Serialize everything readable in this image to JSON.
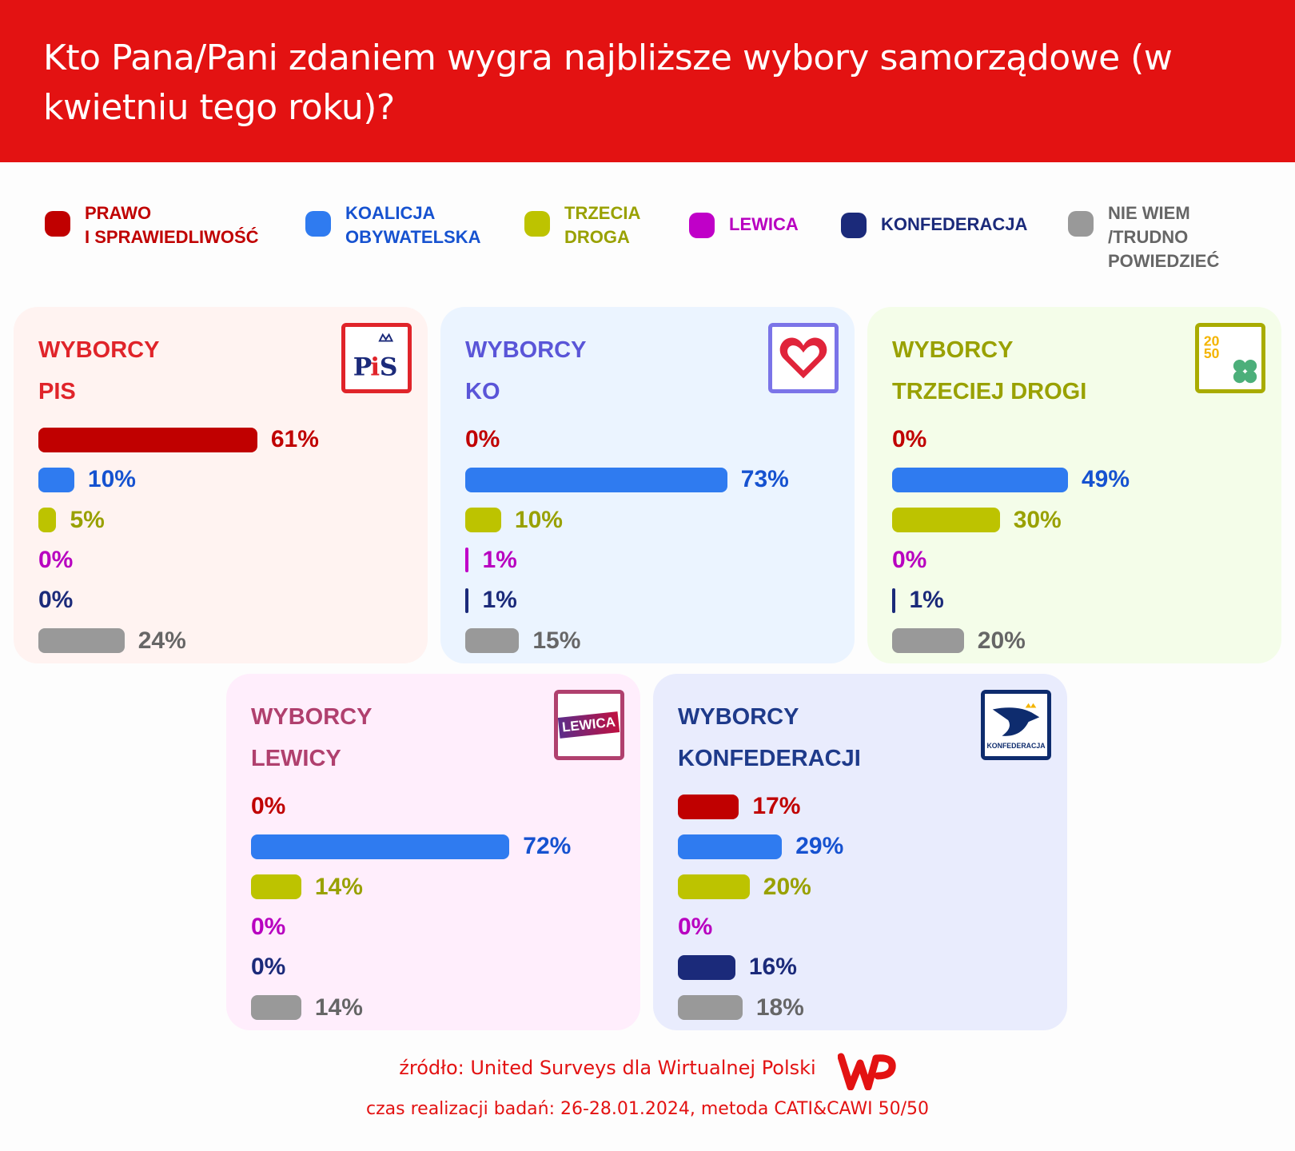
{
  "header": {
    "title": "Kto Pana/Pani zdaniem wygra najbliższe wybory samorządowe (w kwietniu tego roku)?"
  },
  "legend": [
    {
      "label": "PRAWO\nI SPRAWIEDLIWOŚĆ",
      "color": "#c00000",
      "text": "#c00000"
    },
    {
      "label": "KOALICJA\nOBYWATELSKA",
      "color": "#2f7bf0",
      "text": "#1652d0"
    },
    {
      "label": "TRZECIA\nDROGA",
      "color": "#bdc300",
      "text": "#99a100"
    },
    {
      "label": "LEWICA",
      "color": "#c000c8",
      "text": "#b800c0"
    },
    {
      "label": "KONFEDERACJA",
      "color": "#1b2a7a",
      "text": "#1b2a7a"
    },
    {
      "label": "NIE WIEM\n/TRUDNO\nPOWIEDZIEĆ",
      "color": "#999999",
      "text": "#666666"
    }
  ],
  "chart_data": [
    {
      "type": "bar",
      "title": "WYBORCY\nPIS",
      "logo": "pis-logo",
      "categories": [
        "PRAWO I SPRAWIEDLIWOŚĆ",
        "KOALICJA OBYWATELSKA",
        "TRZECIA DROGA",
        "LEWICA",
        "KONFEDERACJA",
        "NIE WIEM /TRUDNO POWIEDZIEĆ"
      ],
      "values": [
        61,
        10,
        5,
        0,
        0,
        24
      ],
      "labels": [
        "61%",
        "10%",
        "5%",
        "0%",
        "0%",
        "24%"
      ]
    },
    {
      "type": "bar",
      "title": "WYBORCY\nKO",
      "logo": "ko-heart-logo",
      "categories": [
        "PRAWO I SPRAWIEDLIWOŚĆ",
        "KOALICJA OBYWATELSKA",
        "TRZECIA DROGA",
        "LEWICA",
        "KONFEDERACJA",
        "NIE WIEM /TRUDNO POWIEDZIEĆ"
      ],
      "values": [
        0,
        73,
        10,
        1,
        1,
        15
      ],
      "labels": [
        "0%",
        "73%",
        "10%",
        "1%",
        "1%",
        "15%"
      ]
    },
    {
      "type": "bar",
      "title": "WYBORCY\nTRZECIEJ DROGI",
      "logo": "trzecia-droga-logo",
      "categories": [
        "PRAWO I SPRAWIEDLIWOŚĆ",
        "KOALICJA OBYWATELSKA",
        "TRZECIA DROGA",
        "LEWICA",
        "KONFEDERACJA",
        "NIE WIEM /TRUDNO POWIEDZIEĆ"
      ],
      "values": [
        0,
        49,
        30,
        0,
        1,
        20
      ],
      "labels": [
        "0%",
        "49%",
        "30%",
        "0%",
        "1%",
        "20%"
      ]
    },
    {
      "type": "bar",
      "title": "WYBORCY\nLEWICY",
      "logo": "lewica-logo",
      "logo_text": "LEWICA",
      "categories": [
        "PRAWO I SPRAWIEDLIWOŚĆ",
        "KOALICJA OBYWATELSKA",
        "TRZECIA DROGA",
        "LEWICA",
        "KONFEDERACJA",
        "NIE WIEM /TRUDNO POWIEDZIEĆ"
      ],
      "values": [
        0,
        72,
        14,
        0,
        0,
        14
      ],
      "labels": [
        "0%",
        "72%",
        "14%",
        "0%",
        "0%",
        "14%"
      ]
    },
    {
      "type": "bar",
      "title": "WYBORCY\nKONFEDERACJI",
      "logo": "konfederacja-logo",
      "logo_text": "KONFEDERACJA",
      "categories": [
        "PRAWO I SPRAWIEDLIWOŚĆ",
        "KOALICJA OBYWATELSKA",
        "TRZECIA DROGA",
        "LEWICA",
        "KONFEDERACJA",
        "NIE WIEM /TRUDNO POWIEDZIEĆ"
      ],
      "values": [
        17,
        29,
        20,
        0,
        16,
        18
      ],
      "labels": [
        "17%",
        "29%",
        "20%",
        "0%",
        "16%",
        "18%"
      ]
    }
  ],
  "cards_style": [
    {
      "bg": "#fff3f1",
      "title": "#e0242a",
      "border": "#e0242a"
    },
    {
      "bg": "#ebf4ff",
      "title": "#5a55d8",
      "border": "#7b74e8"
    },
    {
      "bg": "#f4fde9",
      "title": "#99a100",
      "border": "#a9ac00"
    },
    {
      "bg": "#ffeefc",
      "title": "#b0406e",
      "border": "#b0406e"
    },
    {
      "bg": "#e9ecfd",
      "title": "#1e3a8a",
      "border": "#0e2c6e"
    }
  ],
  "footer": {
    "source": "źródło: United Surveys dla Wirtualnej Polski",
    "meta": "czas realizacji badań: 26-28.01.2024, metoda CATI&CAWI 50/50",
    "brand_logo": "WP"
  }
}
